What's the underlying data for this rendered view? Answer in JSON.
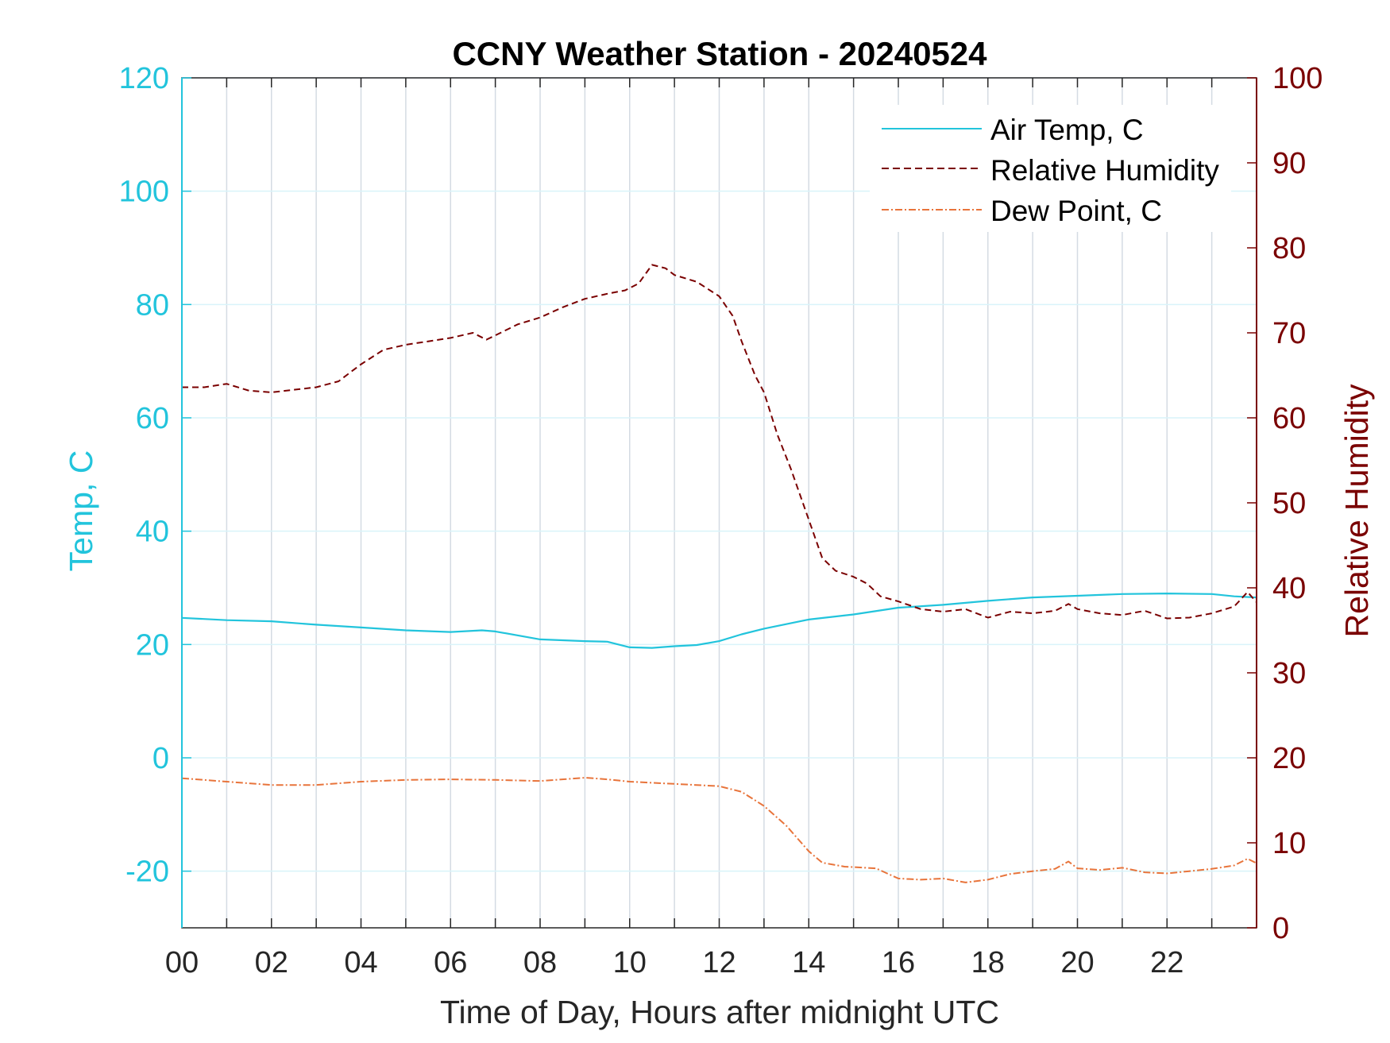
{
  "chart_data": {
    "type": "line",
    "title": "CCNY Weather Station - 20240524",
    "xlabel": "Time of Day, Hours after midnight UTC",
    "ylabel_left": "Temp, C",
    "ylabel_right": "Relative Humidity",
    "xlim": [
      0,
      24
    ],
    "ylim_left": [
      -30,
      120
    ],
    "ylim_right": [
      0,
      100
    ],
    "x_ticks": [
      0,
      2,
      4,
      6,
      8,
      10,
      12,
      14,
      16,
      18,
      20,
      22
    ],
    "x_tick_labels": [
      "00",
      "02",
      "04",
      "06",
      "08",
      "10",
      "12",
      "14",
      "16",
      "18",
      "20",
      "22"
    ],
    "y_left_ticks": [
      -20,
      0,
      20,
      40,
      60,
      80,
      100,
      120
    ],
    "y_left_tick_labels": [
      "-20",
      "0",
      "20",
      "40",
      "60",
      "80",
      "100",
      "120"
    ],
    "y_right_ticks": [
      0,
      10,
      20,
      30,
      40,
      50,
      60,
      70,
      80,
      90,
      100
    ],
    "y_right_tick_labels": [
      "0",
      "10",
      "20",
      "30",
      "40",
      "50",
      "60",
      "70",
      "80",
      "90",
      "100"
    ],
    "grid": true,
    "legend_position": "top-right",
    "colors": {
      "left_axis": "#22c4dc",
      "right_axis": "#7a0000",
      "air_temp": "#22c4dc",
      "humidity": "#7a0000",
      "dew_point": "#e8743b",
      "grid_x": "#d4dbe3",
      "grid_y": "#d9f4fa"
    },
    "series": [
      {
        "name": "Air Temp, C",
        "axis": "left",
        "style": "solid",
        "x": [
          0,
          1,
          2,
          3,
          4,
          5,
          6,
          6.7,
          7,
          8,
          9,
          9.5,
          10,
          10.5,
          11,
          11.5,
          12,
          12.5,
          13,
          14,
          15,
          16,
          17,
          18,
          19,
          20,
          21,
          22,
          23,
          23.5,
          24
        ],
        "y": [
          24.7,
          24.3,
          24.1,
          23.5,
          23.0,
          22.5,
          22.2,
          22.5,
          22.3,
          20.9,
          20.6,
          20.5,
          19.5,
          19.4,
          19.7,
          19.9,
          20.6,
          21.8,
          22.8,
          24.4,
          25.3,
          26.5,
          27.0,
          27.7,
          28.3,
          28.6,
          28.9,
          29.0,
          28.9,
          28.5,
          28.3
        ]
      },
      {
        "name": "Relative Humidity",
        "axis": "right",
        "style": "dashed",
        "x": [
          0,
          0.5,
          1.0,
          1.5,
          2.0,
          2.5,
          3.0,
          3.5,
          3.8,
          4.0,
          4.5,
          5.0,
          5.5,
          6.0,
          6.5,
          6.8,
          7.0,
          7.5,
          8.0,
          8.5,
          9.0,
          9.5,
          9.9,
          10.2,
          10.5,
          10.8,
          11.0,
          11.5,
          12.0,
          12.3,
          12.5,
          12.8,
          13.0,
          13.3,
          13.6,
          14.0,
          14.3,
          14.6,
          15.0,
          15.3,
          15.6,
          16.0,
          16.5,
          17.0,
          17.5,
          18.0,
          18.5,
          19.0,
          19.5,
          19.8,
          20.0,
          20.5,
          21.0,
          21.5,
          22.0,
          22.5,
          23.0,
          23.5,
          23.8,
          24.0
        ],
        "y": [
          63.6,
          63.6,
          64.0,
          63.2,
          63.0,
          63.3,
          63.6,
          64.3,
          65.5,
          66.3,
          68.0,
          68.6,
          69.0,
          69.4,
          70.0,
          69.2,
          69.7,
          71.0,
          71.8,
          73.0,
          74.0,
          74.6,
          75.0,
          75.8,
          78.0,
          77.6,
          76.8,
          76.0,
          74.3,
          72.0,
          69.0,
          65.0,
          63.0,
          58.0,
          54.0,
          48.0,
          43.5,
          42.0,
          41.3,
          40.5,
          39.0,
          38.4,
          37.5,
          37.2,
          37.5,
          36.5,
          37.2,
          37.0,
          37.3,
          38.1,
          37.5,
          37.0,
          36.8,
          37.3,
          36.4,
          36.5,
          37.0,
          37.8,
          39.5,
          38.3
        ]
      },
      {
        "name": "Dew Point, C",
        "axis": "left",
        "style": "dashdot",
        "x": [
          0,
          1,
          2,
          3,
          4,
          5,
          6,
          7,
          8,
          9,
          9.5,
          10,
          11,
          12,
          12.5,
          13,
          13.5,
          14,
          14.3,
          14.8,
          15.5,
          16.0,
          16.5,
          17.0,
          17.5,
          18.0,
          18.5,
          19.0,
          19.5,
          19.8,
          20.0,
          20.5,
          21.0,
          21.5,
          22.0,
          22.5,
          23.0,
          23.5,
          23.8,
          24.0
        ],
        "y": [
          -3.6,
          -4.2,
          -4.8,
          -4.8,
          -4.2,
          -3.9,
          -3.8,
          -3.9,
          -4.1,
          -3.5,
          -3.8,
          -4.2,
          -4.6,
          -5.0,
          -6.0,
          -8.5,
          -12.0,
          -16.5,
          -18.5,
          -19.2,
          -19.5,
          -21.3,
          -21.5,
          -21.3,
          -22.0,
          -21.5,
          -20.5,
          -20.0,
          -19.6,
          -18.3,
          -19.5,
          -19.8,
          -19.4,
          -20.2,
          -20.4,
          -20.0,
          -19.6,
          -19.0,
          -17.8,
          -18.6
        ]
      }
    ]
  }
}
